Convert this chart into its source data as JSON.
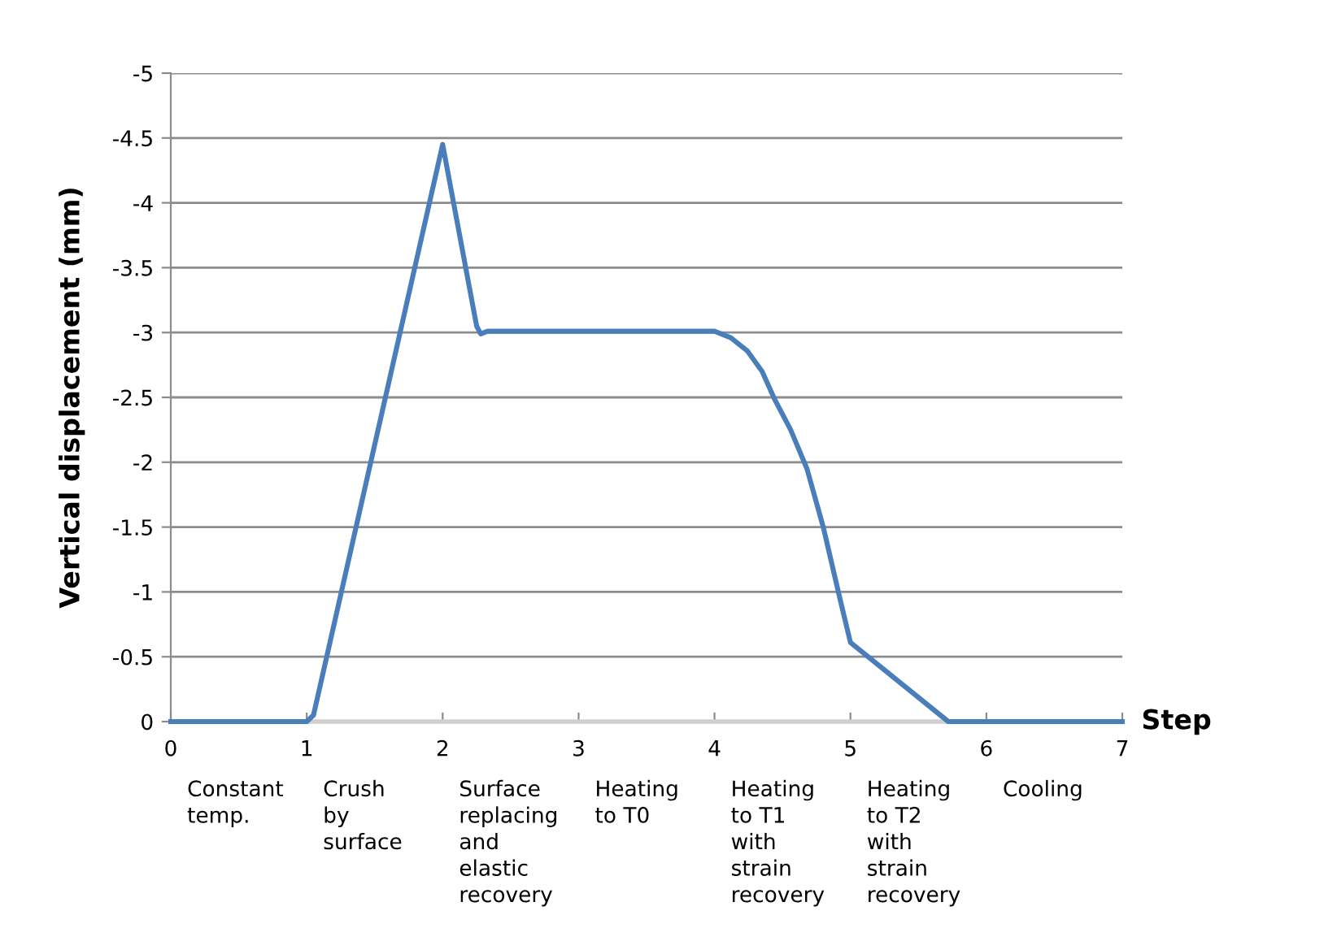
{
  "chart_data": {
    "type": "line",
    "xlabel": "Step",
    "ylabel": "Vertical displacement (mm)",
    "series": [
      {
        "color": "#4a7ebb",
        "x": [
          0,
          1,
          1.05,
          2,
          2.25,
          2.28,
          2.33,
          4,
          4.12,
          4.24,
          4.35,
          4.44,
          4.56,
          4.68,
          4.8,
          4.92,
          5.0,
          5.72,
          7
        ],
        "values": [
          0,
          0,
          -0.05,
          -4.45,
          -3.05,
          -2.99,
          -3.01,
          -3.01,
          -2.96,
          -2.86,
          -2.7,
          -2.49,
          -2.25,
          -1.95,
          -1.5,
          -0.96,
          -0.61,
          0,
          0
        ]
      }
    ],
    "xlim": [
      0,
      7
    ],
    "xticks": [
      0,
      1,
      2,
      3,
      4,
      5,
      6,
      7
    ],
    "ylim": [
      0,
      -5
    ],
    "yticks": [
      0,
      -0.5,
      -1,
      -1.5,
      -2,
      -2.5,
      -3,
      -3.5,
      -4,
      -4.5,
      -5
    ],
    "grid": "y",
    "marker": "none",
    "line_style": "solid",
    "annotations": [
      "Constant\ntemp.",
      "Crush\nby\nsurface",
      "Surface\nreplacing\nand\nelastic\nrecovery",
      "Heating\nto T0",
      "Heating\nto T1\nwith\nstrain\nrecovery",
      "Heating\nto T2\nwith\nstrain\nrecovery",
      "Cooling"
    ]
  }
}
